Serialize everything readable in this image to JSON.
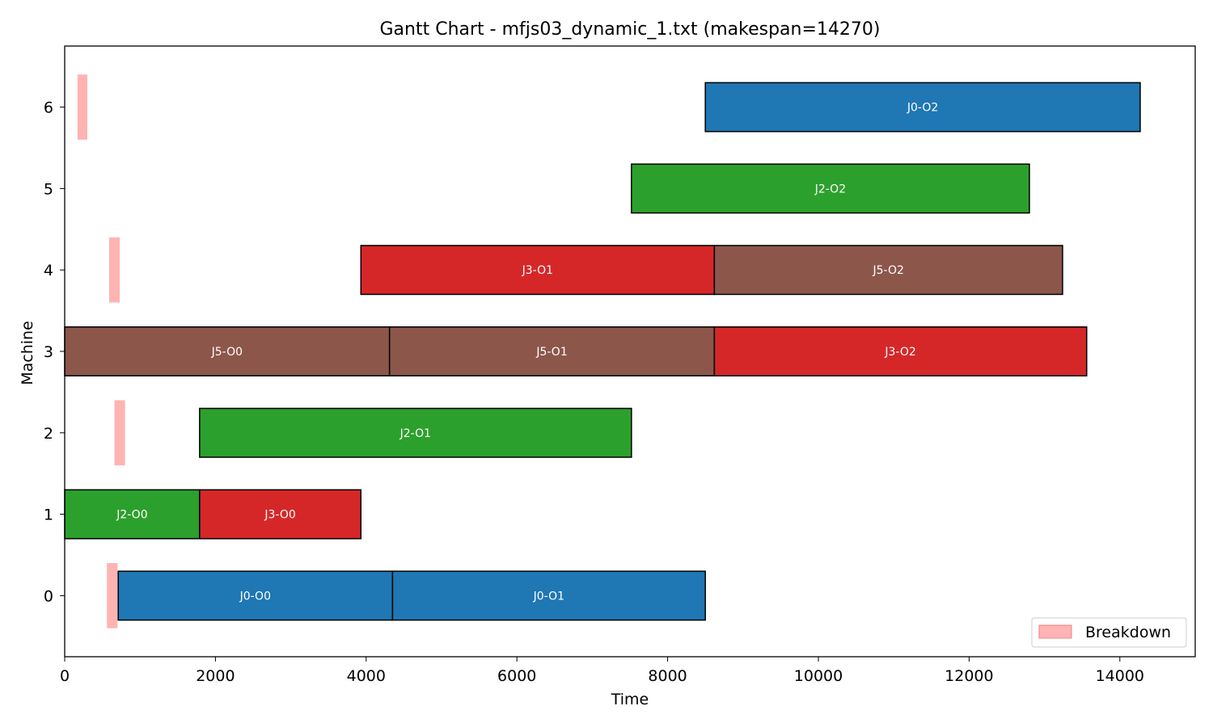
{
  "chart_data": {
    "type": "gantt",
    "title": "Gantt Chart - mfjs03_dynamic_1.txt (makespan=14270)",
    "xlabel": "Time",
    "ylabel": "Machine",
    "xlim": [
      0,
      15000
    ],
    "ylim": [
      -0.75,
      6.75
    ],
    "x_ticks": [
      0,
      2000,
      4000,
      6000,
      8000,
      10000,
      12000,
      14000
    ],
    "y_ticks": [
      0,
      1,
      2,
      3,
      4,
      5,
      6
    ],
    "grid": false,
    "job_colors": {
      "J0": "#1f77b4",
      "J2": "#2ca02c",
      "J3": "#d62728",
      "J5": "#8c564b"
    },
    "operations": [
      {
        "machine": 0,
        "job": "J0",
        "label": "J0-O0",
        "start": 710,
        "end": 4350
      },
      {
        "machine": 0,
        "job": "J0",
        "label": "J0-O1",
        "start": 4350,
        "end": 8500
      },
      {
        "machine": 1,
        "job": "J2",
        "label": "J2-O0",
        "start": 0,
        "end": 1790
      },
      {
        "machine": 1,
        "job": "J3",
        "label": "J3-O0",
        "start": 1790,
        "end": 3930
      },
      {
        "machine": 2,
        "job": "J2",
        "label": "J2-O1",
        "start": 1790,
        "end": 7520
      },
      {
        "machine": 3,
        "job": "J5",
        "label": "J5-O0",
        "start": 0,
        "end": 4310
      },
      {
        "machine": 3,
        "job": "J5",
        "label": "J5-O1",
        "start": 4310,
        "end": 8620
      },
      {
        "machine": 3,
        "job": "J3",
        "label": "J3-O2",
        "start": 8620,
        "end": 13560
      },
      {
        "machine": 4,
        "job": "J3",
        "label": "J3-O1",
        "start": 3930,
        "end": 8620
      },
      {
        "machine": 4,
        "job": "J5",
        "label": "J5-O2",
        "start": 8620,
        "end": 13240
      },
      {
        "machine": 5,
        "job": "J2",
        "label": "J2-O2",
        "start": 7520,
        "end": 12800
      },
      {
        "machine": 6,
        "job": "J0",
        "label": "J0-O2",
        "start": 8500,
        "end": 14270
      }
    ],
    "breakdowns": [
      {
        "machine": 0,
        "start": 560,
        "end": 700
      },
      {
        "machine": 2,
        "start": 660,
        "end": 800
      },
      {
        "machine": 4,
        "start": 590,
        "end": 730
      },
      {
        "machine": 6,
        "start": 170,
        "end": 300
      }
    ],
    "legend": {
      "position": "lower-right",
      "entries": [
        {
          "label": "Breakdown",
          "color": "#ffb3b3",
          "edge": "#f08080"
        }
      ]
    }
  }
}
